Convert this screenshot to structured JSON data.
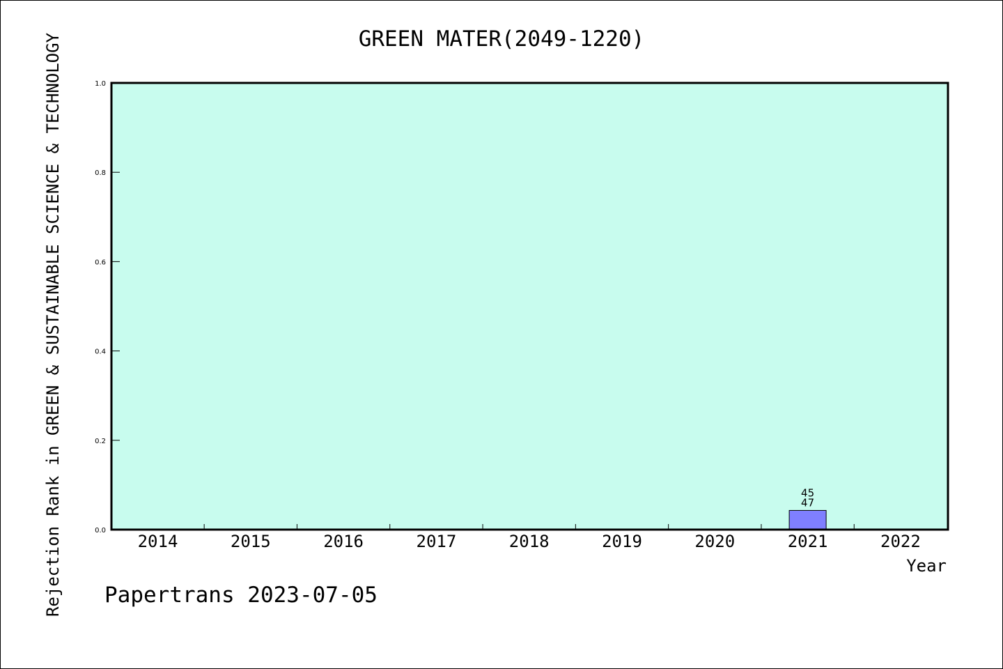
{
  "chart_data": {
    "type": "bar",
    "title": "GREEN MATER(2049-1220)",
    "xlabel": "Year",
    "ylabel": "Rejection Rank in GREEN & SUSTAINABLE SCIENCE & TECHNOLOGY",
    "categories": [
      "2014",
      "2015",
      "2016",
      "2017",
      "2018",
      "2019",
      "2020",
      "2021",
      "2022"
    ],
    "series": [
      {
        "values": [
          null,
          null,
          null,
          null,
          null,
          null,
          null,
          0.043,
          null
        ]
      }
    ],
    "bar_annotations": [
      {
        "category": "2021",
        "lines": [
          "45",
          "47"
        ]
      }
    ],
    "ylim": [
      0,
      1.0
    ],
    "yticks": [
      "0.0",
      "0.2",
      "0.4",
      "0.6",
      "0.8",
      "1.0"
    ],
    "grid": false,
    "legend": "none",
    "colors": {
      "plot_background": "#c8fcee",
      "bar_fill": "#7f7fff",
      "frame": "#000000"
    }
  },
  "footer": {
    "text": "Papertrans 2023-07-05"
  }
}
